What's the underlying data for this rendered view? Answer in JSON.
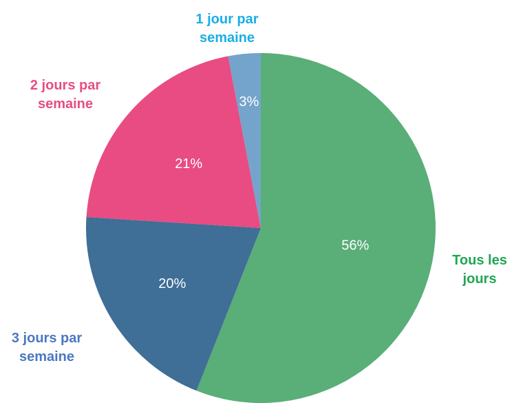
{
  "chart_data": {
    "type": "pie",
    "categories": [
      "Tous les jours",
      "3 jours par semaine",
      "2 jours par semaine",
      "1 jour par semaine"
    ],
    "values": [
      56,
      20,
      21,
      3
    ],
    "value_labels": [
      "56%",
      "20%",
      "21%",
      "3%"
    ],
    "colors": [
      "#5aae78",
      "#3f6e96",
      "#e84c82",
      "#74a4cc"
    ],
    "label_colors": [
      "#1fa553",
      "#4a78c2",
      "#e84c82",
      "#1aaee6"
    ]
  }
}
